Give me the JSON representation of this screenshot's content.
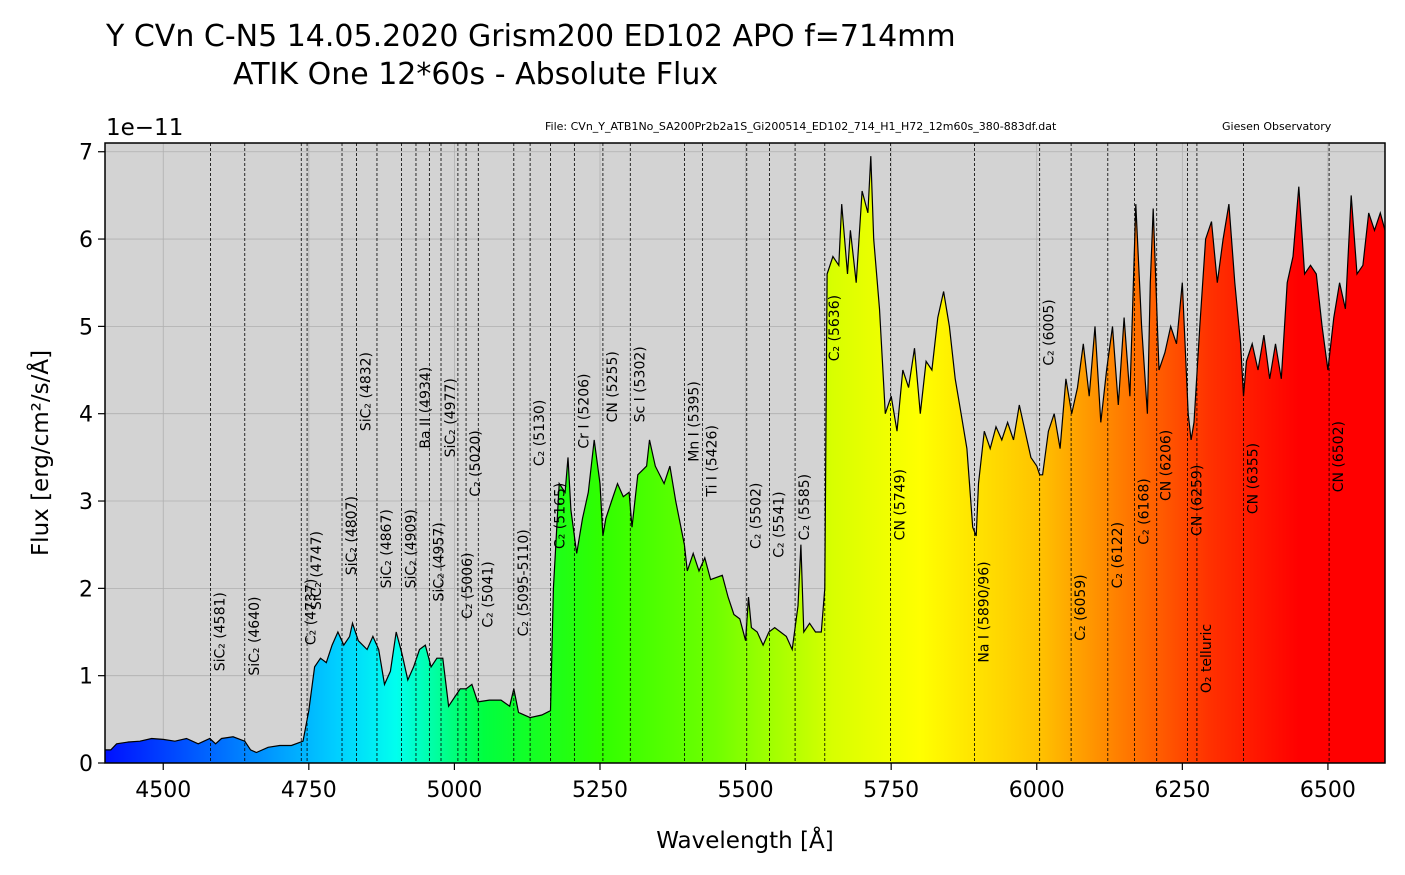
{
  "chart_data": {
    "type": "line",
    "title": "Y CVn   C-N5  14.05.2020   Grism200  ED102 APO  f=714mm",
    "subtitle": "ATIK One  12*60s - Absolute Flux",
    "file_note": "File: CVn_Y_ATB1No_SA200Pr2b2a1S_Gi200514_ED102_714_H1_H72_12m60s_380-883df.dat",
    "observatory": "Giesen Observatory",
    "y_offset_label": "1e−11",
    "x_label": "Wavelength [Å]",
    "y_label": "Flux [erg/cm²/s/Å]",
    "xlim": [
      4400,
      6598
    ],
    "ylim": [
      0,
      7.1
    ],
    "xticks": [
      4500,
      4750,
      5000,
      5250,
      5500,
      5750,
      6000,
      6250,
      6500
    ],
    "yticks": [
      0,
      1,
      2,
      3,
      4,
      5,
      6,
      7
    ],
    "grid": true,
    "series": [
      {
        "name": "Flux",
        "color": "#000000",
        "x": [
          4400,
          4410,
          4420,
          4440,
          4460,
          4480,
          4500,
          4520,
          4540,
          4560,
          4580,
          4590,
          4600,
          4620,
          4640,
          4650,
          4660,
          4680,
          4700,
          4720,
          4740,
          4750,
          4760,
          4770,
          4780,
          4790,
          4800,
          4810,
          4820,
          4825,
          4835,
          4850,
          4860,
          4870,
          4880,
          4890,
          4900,
          4910,
          4920,
          4930,
          4940,
          4950,
          4960,
          4970,
          4980,
          4990,
          5000,
          5010,
          5020,
          5030,
          5040,
          5060,
          5080,
          5095,
          5102,
          5110,
          5130,
          5150,
          5165,
          5170,
          5180,
          5190,
          5195,
          5200,
          5210,
          5220,
          5230,
          5240,
          5250,
          5255,
          5260,
          5270,
          5280,
          5290,
          5300,
          5305,
          5315,
          5330,
          5335,
          5345,
          5360,
          5370,
          5380,
          5395,
          5400,
          5410,
          5420,
          5430,
          5440,
          5460,
          5470,
          5480,
          5490,
          5500,
          5505,
          5510,
          5520,
          5530,
          5540,
          5550,
          5560,
          5570,
          5580,
          5590,
          5595,
          5600,
          5610,
          5620,
          5630,
          5636,
          5640,
          5650,
          5660,
          5665,
          5675,
          5680,
          5690,
          5700,
          5710,
          5715,
          5720,
          5730,
          5740,
          5750,
          5760,
          5770,
          5780,
          5790,
          5800,
          5810,
          5820,
          5830,
          5840,
          5850,
          5860,
          5870,
          5880,
          5890,
          5896,
          5900,
          5910,
          5920,
          5930,
          5940,
          5950,
          5960,
          5970,
          5980,
          5990,
          6000,
          6005,
          6010,
          6020,
          6030,
          6040,
          6050,
          6060,
          6070,
          6080,
          6090,
          6100,
          6110,
          6120,
          6130,
          6140,
          6150,
          6160,
          6170,
          6180,
          6190,
          6195,
          6200,
          6210,
          6220,
          6230,
          6240,
          6250,
          6260,
          6265,
          6270,
          6280,
          6290,
          6300,
          6310,
          6320,
          6330,
          6340,
          6350,
          6355,
          6360,
          6370,
          6380,
          6390,
          6400,
          6410,
          6420,
          6430,
          6440,
          6450,
          6460,
          6470,
          6480,
          6490,
          6500,
          6510,
          6520,
          6530,
          6540,
          6550,
          6560,
          6570,
          6580,
          6590,
          6598
        ],
        "values": [
          0.15,
          0.15,
          0.22,
          0.24,
          0.25,
          0.28,
          0.27,
          0.25,
          0.28,
          0.22,
          0.28,
          0.22,
          0.28,
          0.3,
          0.25,
          0.15,
          0.12,
          0.18,
          0.2,
          0.2,
          0.25,
          0.6,
          1.1,
          1.2,
          1.15,
          1.35,
          1.5,
          1.35,
          1.45,
          1.6,
          1.4,
          1.3,
          1.45,
          1.3,
          0.9,
          1.05,
          1.5,
          1.25,
          0.95,
          1.1,
          1.3,
          1.35,
          1.1,
          1.2,
          1.2,
          0.65,
          0.75,
          0.85,
          0.85,
          0.9,
          0.7,
          0.72,
          0.72,
          0.65,
          0.85,
          0.58,
          0.52,
          0.55,
          0.6,
          2.0,
          3.2,
          3.1,
          3.5,
          2.9,
          2.4,
          2.8,
          3.1,
          3.7,
          3.2,
          2.6,
          2.8,
          3.0,
          3.2,
          3.05,
          3.1,
          2.7,
          3.3,
          3.4,
          3.7,
          3.4,
          3.2,
          3.4,
          3.0,
          2.5,
          2.2,
          2.4,
          2.2,
          2.35,
          2.1,
          2.15,
          1.9,
          1.7,
          1.65,
          1.4,
          1.9,
          1.55,
          1.5,
          1.35,
          1.5,
          1.55,
          1.5,
          1.45,
          1.3,
          1.8,
          2.5,
          1.5,
          1.6,
          1.5,
          1.5,
          2.0,
          5.6,
          5.8,
          5.7,
          6.4,
          5.6,
          6.1,
          5.5,
          6.55,
          6.3,
          6.95,
          6.0,
          5.2,
          4.0,
          4.2,
          3.8,
          4.5,
          4.3,
          4.75,
          4.0,
          4.6,
          4.5,
          5.1,
          5.4,
          5.0,
          4.4,
          4.0,
          3.6,
          2.7,
          2.6,
          3.2,
          3.8,
          3.6,
          3.85,
          3.7,
          3.9,
          3.7,
          4.1,
          3.8,
          3.5,
          3.4,
          3.3,
          3.3,
          3.8,
          4.0,
          3.6,
          4.4,
          4.0,
          4.3,
          4.8,
          4.2,
          5.0,
          3.9,
          4.5,
          5.0,
          4.1,
          5.1,
          4.2,
          6.4,
          5.0,
          4.0,
          5.5,
          6.35,
          4.5,
          4.7,
          5.0,
          4.8,
          5.5,
          4.0,
          3.7,
          3.9,
          5.0,
          6.0,
          6.2,
          5.5,
          6.0,
          6.4,
          5.5,
          4.8,
          4.2,
          4.6,
          4.8,
          4.5,
          4.9,
          4.4,
          4.8,
          4.4,
          5.5,
          5.8,
          6.6,
          5.6,
          5.7,
          5.6,
          5.0,
          4.5,
          5.1,
          5.5,
          5.2,
          6.5,
          5.6,
          5.7,
          6.3,
          6.1,
          6.3,
          6.1
        ]
      }
    ],
    "annotations": [
      {
        "x": 4581,
        "label": "SiC₂ (4581)",
        "y": 1.05
      },
      {
        "x": 4640,
        "label": "SiC₂ (4640)",
        "y": 1.0
      },
      {
        "x": 4737,
        "label": "C₂ (4737)",
        "y": 1.35
      },
      {
        "x": 4747,
        "label": "SiC₂ (4747)",
        "y": 1.75
      },
      {
        "x": 4807,
        "label": "SiC₂ (4807)",
        "y": 2.15
      },
      {
        "x": 4832,
        "label": "SiC₂ (4832)",
        "y": 3.8
      },
      {
        "x": 4867,
        "label": "SiC₂ (4867)",
        "y": 2.0
      },
      {
        "x": 4909,
        "label": "SiC₂ (4909)",
        "y": 2.0
      },
      {
        "x": 4934,
        "label": "Ba II (4934)",
        "y": 3.6
      },
      {
        "x": 4957,
        "label": "SiC₂ (4957)",
        "y": 1.85
      },
      {
        "x": 4977,
        "label": "SiC₂ (4977)",
        "y": 3.5
      },
      {
        "x": 5006,
        "label": "C₂ (5006)",
        "y": 1.65
      },
      {
        "x": 5020,
        "label": "C₂ (5020)",
        "y": 3.05
      },
      {
        "x": 5041,
        "label": "C₂ (5041)",
        "y": 1.55
      },
      {
        "x": 5102,
        "label": "C₂ (5095-5110)",
        "y": 1.45
      },
      {
        "x": 5130,
        "label": "C₂ (5130)",
        "y": 3.4
      },
      {
        "x": 5165,
        "label": "C₂ (5165)",
        "y": 2.45
      },
      {
        "x": 5206,
        "label": "Cr I (5206)",
        "y": 3.6
      },
      {
        "x": 5255,
        "label": "CN (5255)",
        "y": 3.9
      },
      {
        "x": 5302,
        "label": "Sc I (5302)",
        "y": 3.9
      },
      {
        "x": 5395,
        "label": "Mn I (5395)",
        "y": 3.45
      },
      {
        "x": 5426,
        "label": "Ti I (5426)",
        "y": 3.05
      },
      {
        "x": 5502,
        "label": "C₂ (5502)",
        "y": 2.45
      },
      {
        "x": 5541,
        "label": "C₂ (5541)",
        "y": 2.35
      },
      {
        "x": 5585,
        "label": "C₂ (5585)",
        "y": 2.55
      },
      {
        "x": 5636,
        "label": "C₂ (5636)",
        "y": 4.6
      },
      {
        "x": 5749,
        "label": "CN (5749)",
        "y": 2.55
      },
      {
        "x": 5893,
        "label": "Na I (5890/96)",
        "y": 1.15
      },
      {
        "x": 6005,
        "label": "C₂ (6005)",
        "y": 4.55
      },
      {
        "x": 6059,
        "label": "C₂ (6059)",
        "y": 1.4
      },
      {
        "x": 6122,
        "label": "C₂ (6122)",
        "y": 2.0
      },
      {
        "x": 6168,
        "label": "C₂ (6168)",
        "y": 2.5
      },
      {
        "x": 6206,
        "label": "CN (6206)",
        "y": 3.0
      },
      {
        "x": 6259,
        "label": "CN (6259)",
        "y": 2.6
      },
      {
        "x": 6275,
        "label": "O₂ telluric",
        "y": 0.8
      },
      {
        "x": 6355,
        "label": "CN (6355)",
        "y": 2.85
      },
      {
        "x": 6502,
        "label": "CN (6502)",
        "y": 3.1
      }
    ]
  }
}
